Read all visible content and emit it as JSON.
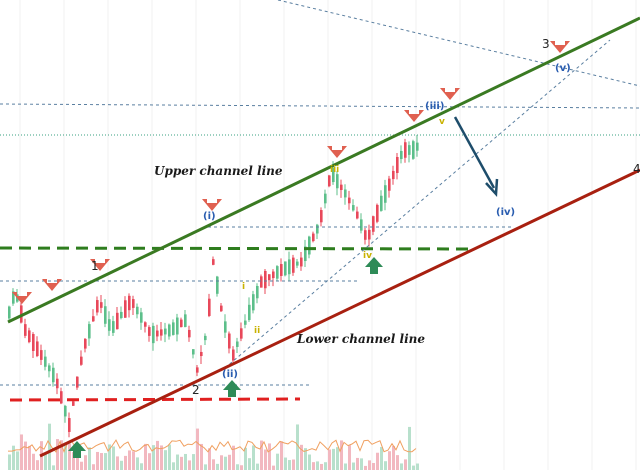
{
  "chart_data": {
    "type": "candlestick",
    "annotations": {
      "upper_channel_label": "Upper channel line",
      "lower_channel_label": "Lower channel line",
      "major_waves": [
        "1",
        "2",
        "3",
        "4"
      ],
      "minor_waves_blue": [
        "(i)",
        "(ii)",
        "(iii)",
        "(iv)",
        "(v)"
      ],
      "minor_waves_yellow": [
        "i",
        "ii",
        "iii",
        "iv",
        "v"
      ]
    },
    "price_trend": "uptrend within rising channel, projected correction to (iv)",
    "legend": "none",
    "grid": "vertical",
    "colors": {
      "upper_channel": "#3a7a22",
      "lower_channel": "#a82010",
      "support_dashed_green": "#2e7d1e",
      "support_dashed_red": "#e02020",
      "bull_candle": "#5cbf8a",
      "bear_candle": "#e8485a",
      "sell_arrow": "#e06050",
      "buy_arrow": "#2e8b57",
      "projection_arrow": "#1e4d6b",
      "wave_blue": "#2a5db0",
      "wave_yellow": "#c9b200"
    }
  }
}
